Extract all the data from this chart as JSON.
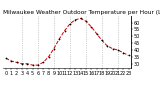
{
  "title": "Milwaukee Weather Outdoor Temperature per Hour (Last 24 Hours)",
  "hours": [
    0,
    1,
    2,
    3,
    4,
    5,
    6,
    7,
    8,
    9,
    10,
    11,
    12,
    13,
    14,
    15,
    16,
    17,
    18,
    19,
    20,
    21,
    22,
    23
  ],
  "temps": [
    34,
    32,
    31,
    30,
    30,
    29,
    29,
    31,
    35,
    41,
    48,
    54,
    59,
    62,
    63,
    61,
    57,
    52,
    47,
    43,
    41,
    40,
    38,
    36
  ],
  "line_color": "#cc0000",
  "marker_color": "#000000",
  "bg_color": "#ffffff",
  "ylim": [
    27,
    65
  ],
  "yticks": [
    30,
    35,
    40,
    45,
    50,
    55,
    60
  ],
  "vgrid_positions": [
    3,
    6,
    9,
    12,
    15,
    18,
    21
  ],
  "grid_color": "#aaaaaa",
  "title_fontsize": 4.2,
  "tick_fontsize": 3.5
}
